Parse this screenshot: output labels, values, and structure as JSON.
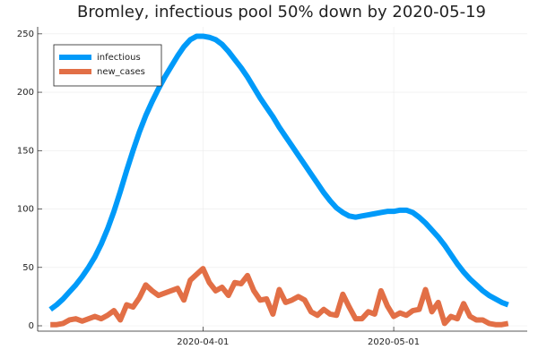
{
  "chart_data": {
    "type": "line",
    "title": "Bromley, infectious pool 50% down by 2020-05-19",
    "x": [
      "2020-03-08",
      "2020-03-09",
      "2020-03-10",
      "2020-03-11",
      "2020-03-12",
      "2020-03-13",
      "2020-03-14",
      "2020-03-15",
      "2020-03-16",
      "2020-03-17",
      "2020-03-18",
      "2020-03-19",
      "2020-03-20",
      "2020-03-21",
      "2020-03-22",
      "2020-03-23",
      "2020-03-24",
      "2020-03-25",
      "2020-03-26",
      "2020-03-27",
      "2020-03-28",
      "2020-03-29",
      "2020-03-30",
      "2020-03-31",
      "2020-04-01",
      "2020-04-02",
      "2020-04-03",
      "2020-04-04",
      "2020-04-05",
      "2020-04-06",
      "2020-04-07",
      "2020-04-08",
      "2020-04-09",
      "2020-04-10",
      "2020-04-11",
      "2020-04-12",
      "2020-04-13",
      "2020-04-14",
      "2020-04-15",
      "2020-04-16",
      "2020-04-17",
      "2020-04-18",
      "2020-04-19",
      "2020-04-20",
      "2020-04-21",
      "2020-04-22",
      "2020-04-23",
      "2020-04-24",
      "2020-04-25",
      "2020-04-26",
      "2020-04-27",
      "2020-04-28",
      "2020-04-29",
      "2020-04-30",
      "2020-05-01",
      "2020-05-02",
      "2020-05-03",
      "2020-05-04",
      "2020-05-05",
      "2020-05-06",
      "2020-05-07",
      "2020-05-08",
      "2020-05-09",
      "2020-05-10",
      "2020-05-11",
      "2020-05-12",
      "2020-05-13",
      "2020-05-14",
      "2020-05-15",
      "2020-05-16",
      "2020-05-17",
      "2020-05-18",
      "2020-05-19"
    ],
    "series": [
      {
        "name": "infectious",
        "color": "#009af9",
        "values": [
          14,
          18,
          23,
          29,
          35,
          42,
          50,
          59,
          70,
          83,
          98,
          115,
          133,
          150,
          166,
          180,
          192,
          203,
          213,
          222,
          231,
          239,
          245,
          248,
          248,
          247,
          245,
          241,
          235,
          228,
          221,
          213,
          204,
          195,
          187,
          179,
          170,
          162,
          154,
          146,
          138,
          130,
          122,
          114,
          107,
          101,
          97,
          94,
          93,
          94,
          95,
          96,
          97,
          98,
          98,
          99,
          99,
          97,
          93,
          88,
          82,
          76,
          69,
          61,
          53,
          46,
          40,
          35,
          30,
          26,
          23,
          20,
          18
        ]
      },
      {
        "name": "new_cases",
        "color": "#e26f46",
        "values": [
          1,
          1,
          2,
          5,
          6,
          4,
          6,
          8,
          6,
          9,
          13,
          5,
          18,
          16,
          24,
          35,
          30,
          26,
          28,
          30,
          32,
          22,
          39,
          44,
          49,
          37,
          30,
          33,
          26,
          37,
          36,
          43,
          30,
          22,
          23,
          10,
          31,
          20,
          22,
          25,
          22,
          12,
          9,
          14,
          10,
          9,
          27,
          16,
          6,
          6,
          12,
          10,
          30,
          17,
          8,
          11,
          9,
          13,
          14,
          31,
          12,
          20,
          2,
          8,
          6,
          19,
          8,
          5,
          5,
          2,
          1,
          1,
          2
        ]
      }
    ],
    "xlim": [
      "2020-03-06",
      "2020-05-22"
    ],
    "xticks": [
      "2020-04-01",
      "2020-05-01"
    ],
    "ylim": [
      -4.6,
      256
    ],
    "yticks": [
      0,
      50,
      100,
      150,
      200,
      250
    ],
    "grid": true,
    "legend": "top-left"
  }
}
